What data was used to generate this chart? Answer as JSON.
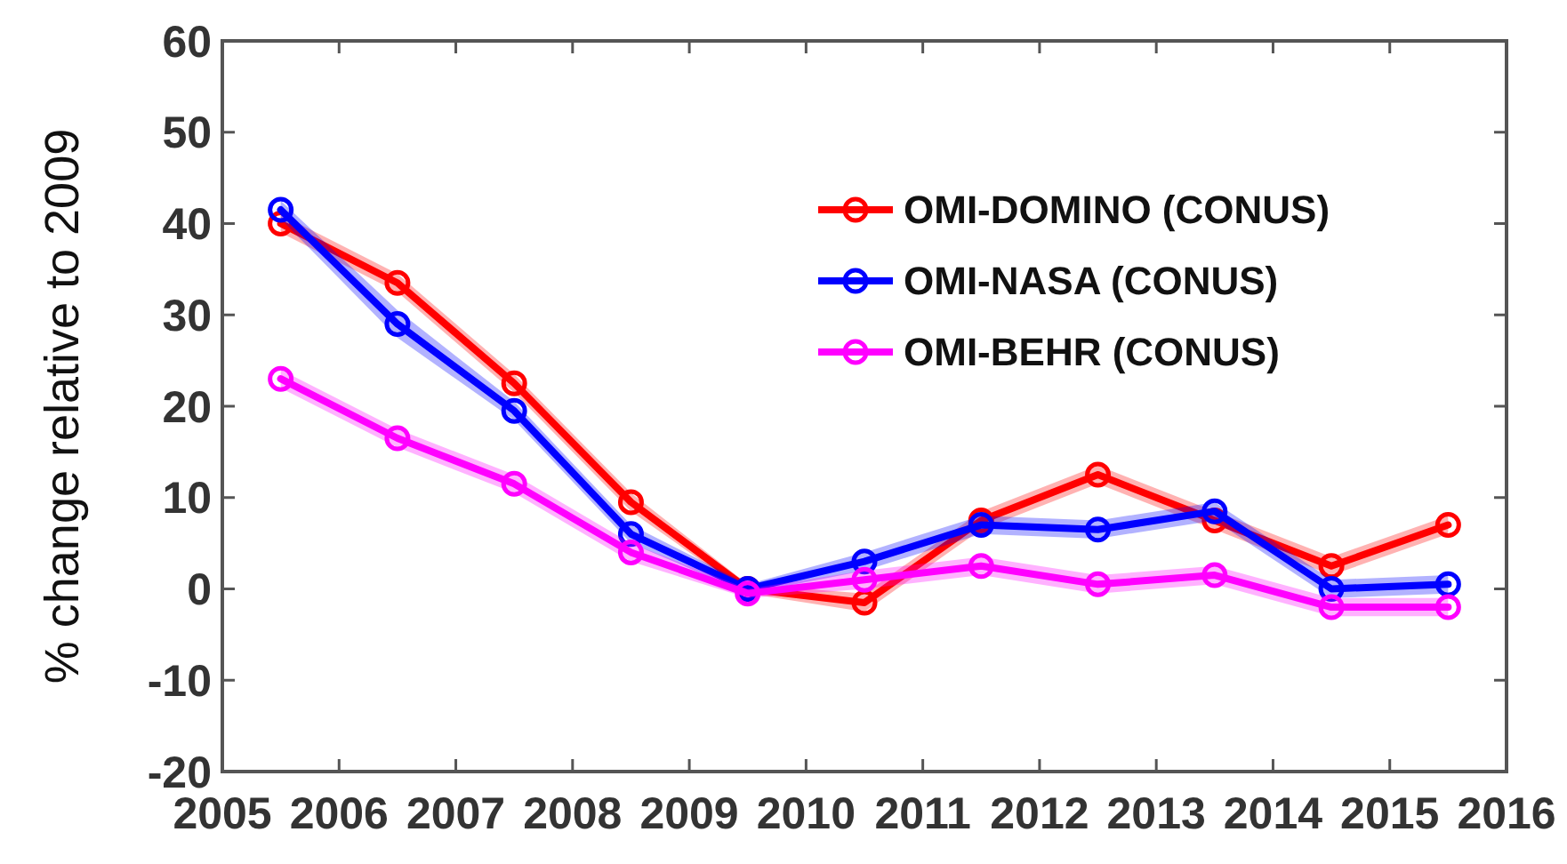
{
  "chart_data": {
    "type": "line",
    "ylabel": "% change relative to 2009",
    "x": [
      2005.5,
      2006.5,
      2007.5,
      2008.5,
      2009.5,
      2010.5,
      2011.5,
      2012.5,
      2013.5,
      2014.5,
      2015.5
    ],
    "xlim": [
      2005,
      2016
    ],
    "xticks": [
      2005,
      2006,
      2007,
      2008,
      2009,
      2010,
      2011,
      2012,
      2013,
      2014,
      2015,
      2016
    ],
    "ylim": [
      -20,
      60
    ],
    "yticks": [
      -20,
      -10,
      0,
      10,
      20,
      30,
      40,
      50,
      60
    ],
    "grid": false,
    "legend": "top right",
    "marker": "circle",
    "line_style": "solid",
    "series": [
      {
        "name": "OMI-DOMINO (CONUS)",
        "color": "#ff0000",
        "values": [
          40,
          33.5,
          22.5,
          9.5,
          0,
          -1.5,
          7.5,
          12.5,
          7.5,
          2.5,
          7
        ],
        "lower": [
          39,
          32.5,
          21.5,
          8.5,
          -0.5,
          -2.5,
          6.5,
          11.5,
          6.5,
          1.5,
          6
        ],
        "upper": [
          41,
          34.5,
          23.5,
          10.5,
          0.5,
          -0.5,
          8.5,
          13.5,
          8.5,
          3.5,
          8
        ]
      },
      {
        "name": "OMI-NASA (CONUS)",
        "color": "#0000ff",
        "values": [
          41.5,
          29,
          19.5,
          6,
          0,
          3,
          7,
          6.5,
          8.5,
          0,
          0.5
        ],
        "lower": [
          40.5,
          27.5,
          18.5,
          5,
          -0.5,
          2,
          6,
          5.5,
          7.5,
          -1,
          -0.5
        ],
        "upper": [
          42.5,
          30.5,
          20.5,
          7,
          0.5,
          4,
          8,
          7.5,
          9.5,
          1,
          1.5
        ]
      },
      {
        "name": "OMI-BEHR (CONUS)",
        "color": "#ff00ff",
        "values": [
          23,
          16.5,
          11.5,
          4,
          -0.5,
          1,
          2.5,
          0.5,
          1.5,
          -2,
          -2
        ],
        "lower": [
          22,
          15.5,
          10.5,
          3,
          -1,
          0,
          1.5,
          -0.5,
          0.5,
          -3,
          -3
        ],
        "upper": [
          24,
          17.5,
          12.5,
          5,
          0,
          2,
          3.5,
          1.5,
          2.5,
          -1,
          -1
        ]
      }
    ]
  }
}
